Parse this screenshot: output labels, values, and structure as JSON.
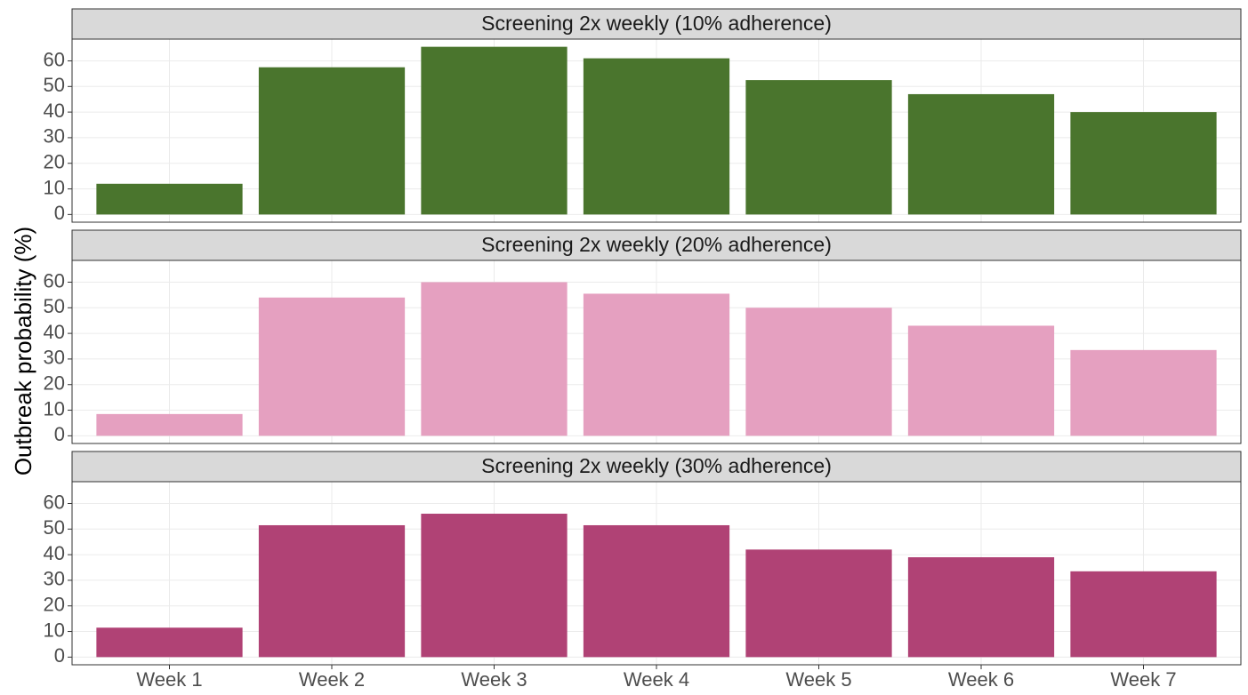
{
  "ylabel": "Outbreak probability (%)",
  "chart_data": [
    {
      "type": "bar",
      "title": "Screening 2x weekly (10% adherence)",
      "categories": [
        "Week 1",
        "Week 2",
        "Week 3",
        "Week 4",
        "Week 5",
        "Week 6",
        "Week 7"
      ],
      "values": [
        12,
        57.5,
        65.5,
        61,
        52.5,
        47,
        40
      ],
      "color": "#4a752d",
      "ylim": [
        -3,
        68.5
      ],
      "yticks": [
        0,
        10,
        20,
        30,
        40,
        50,
        60
      ],
      "grid": true
    },
    {
      "type": "bar",
      "title": "Screening 2x weekly (20% adherence)",
      "categories": [
        "Week 1",
        "Week 2",
        "Week 3",
        "Week 4",
        "Week 5",
        "Week 6",
        "Week 7"
      ],
      "values": [
        8.5,
        54,
        60,
        55.5,
        50,
        43,
        33.5
      ],
      "color": "#e5a0c0",
      "ylim": [
        -3,
        68.5
      ],
      "yticks": [
        0,
        10,
        20,
        30,
        40,
        50,
        60
      ],
      "grid": true
    },
    {
      "type": "bar",
      "title": "Screening 2x weekly (30% adherence)",
      "categories": [
        "Week 1",
        "Week 2",
        "Week 3",
        "Week 4",
        "Week 5",
        "Week 6",
        "Week 7"
      ],
      "values": [
        11.5,
        51.5,
        56,
        51.5,
        42,
        39,
        33.5
      ],
      "color": "#b04275",
      "ylim": [
        -3,
        68.5
      ],
      "yticks": [
        0,
        10,
        20,
        30,
        40,
        50,
        60
      ],
      "grid": true
    }
  ]
}
